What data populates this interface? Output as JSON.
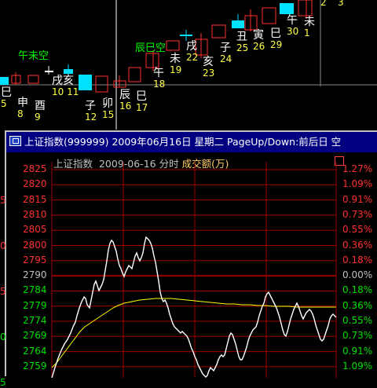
{
  "colors": {
    "up": "#ff3030",
    "down": "#00e0ff",
    "grid": "#a00000",
    "price": "#ffffff",
    "avg": "#ffff00",
    "kong": "#00ff00"
  },
  "top_chart": {
    "labels": [
      {
        "gz": "巳",
        "num": "5"
      },
      {
        "gz": "申",
        "num": "8"
      },
      {
        "gz": "酉",
        "num": "9"
      },
      {
        "gz": "戌亥",
        "num": "10 11"
      },
      {
        "gz": "子",
        "num": "12"
      },
      {
        "gz": "卯",
        "num": "15"
      },
      {
        "gz": "辰",
        "num": "16"
      },
      {
        "gz": "巳",
        "num": "17"
      },
      {
        "gz": "午",
        "num": "18"
      },
      {
        "gz": "未",
        "num": "19"
      },
      {
        "gz": "戌",
        "num": "22"
      },
      {
        "gz": "亥",
        "num": "23"
      },
      {
        "gz": "子",
        "num": "24"
      },
      {
        "gz": "丑",
        "num": "25"
      },
      {
        "gz": "寅",
        "num": "26"
      },
      {
        "gz": "巳",
        "num": "29"
      },
      {
        "gz": "午",
        "num": "30"
      },
      {
        "gz": "未",
        "num": "1"
      },
      {
        "gz": "",
        "num": "2"
      },
      {
        "gz": "",
        "num": "3"
      }
    ],
    "kong_labels": [
      "午未空",
      "辰巳空"
    ]
  },
  "popup": {
    "title": "上证指数(999999) 2009年06月16日 星期二 PageUp/Down:前后日 空",
    "index_name": "上证指数",
    "date": "2009-06-16",
    "mode": "分时",
    "vol_label": "成交额(万)"
  },
  "intraday": {
    "price_labels": [
      "2825",
      "2820",
      "2815",
      "2810",
      "2805",
      "2800",
      "2795",
      "2790",
      "2784",
      "2779",
      "2774",
      "2769",
      "2764",
      "2759"
    ],
    "pct_labels": [
      "1.27%",
      "1.09%",
      "0.91%",
      "0.73%",
      "0.55%",
      "0.36%",
      "0.18%",
      "0.00%",
      "0.18%",
      "0.36%",
      "0.55%",
      "0.73%",
      "0.91%",
      "1.09%"
    ],
    "left_edge_labels": [
      "5",
      "0",
      "5",
      "0",
      "5"
    ]
  }
}
